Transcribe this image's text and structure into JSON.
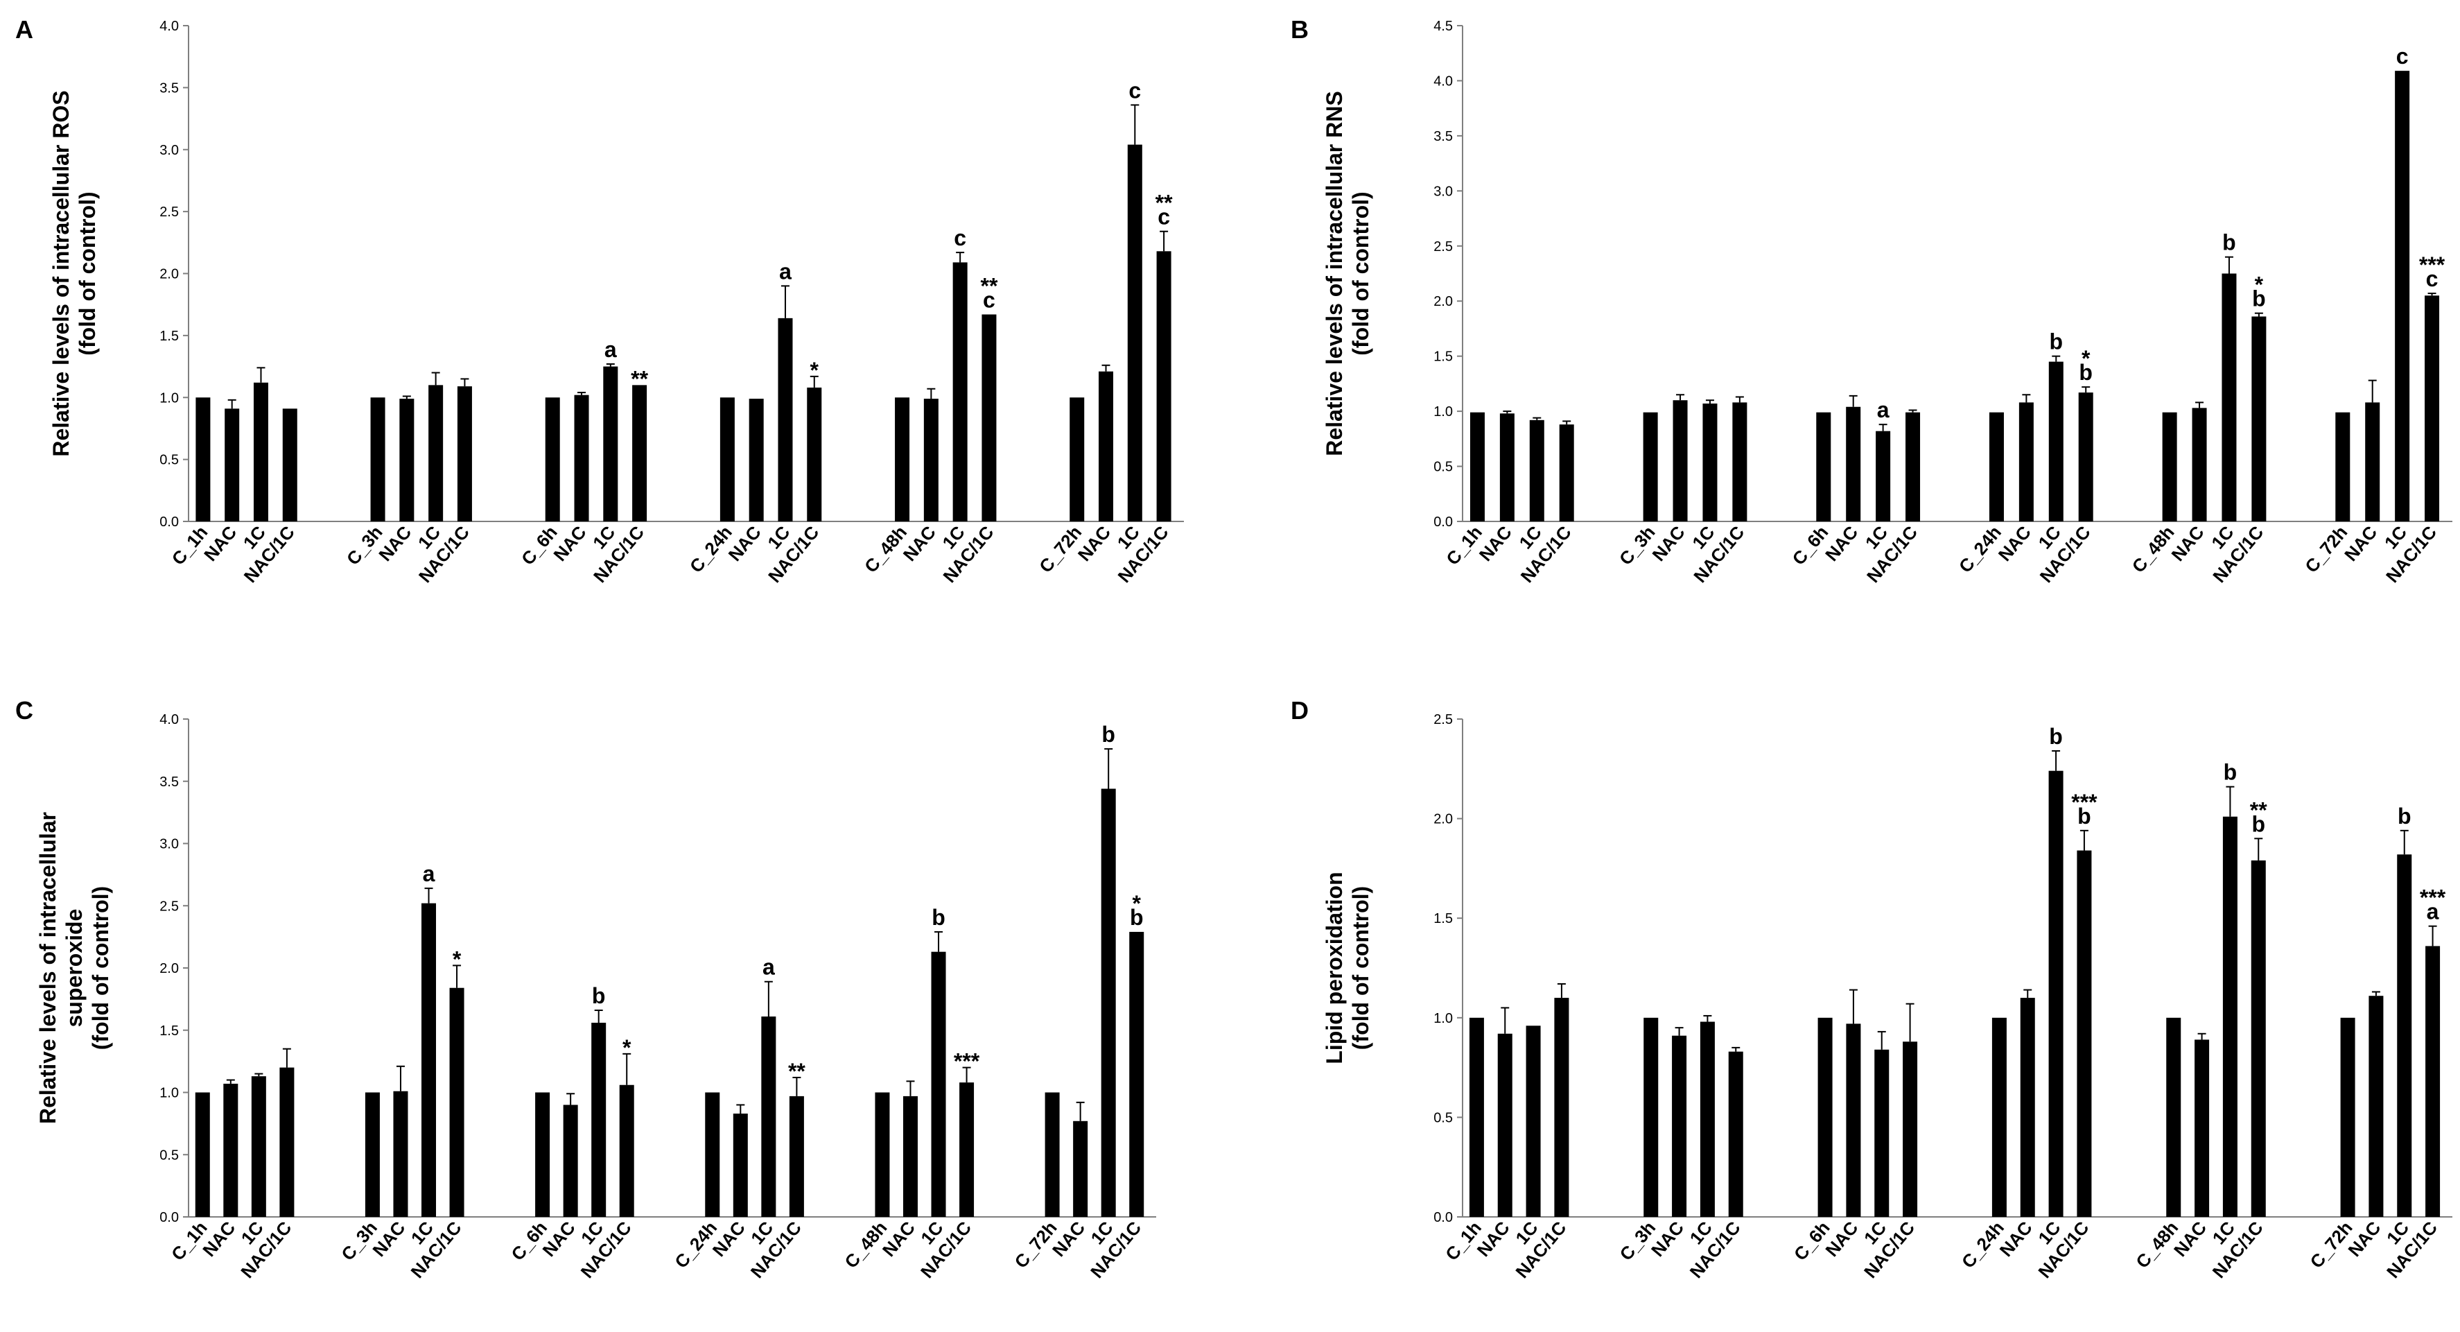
{
  "colors": {
    "bar": "#000000",
    "axis": "#7f7f7f",
    "background": "#ffffff"
  },
  "chart_data": [
    {
      "panel": "A",
      "type": "bar",
      "ylabel": [
        "Relative levels of intracellular ROS",
        "(fold of control)"
      ],
      "ylim": [
        0,
        4.0
      ],
      "yticks": [
        "0.0",
        "0.5",
        "1.0",
        "1.5",
        "2.0",
        "2.5",
        "3.0",
        "3.5",
        "4.0"
      ],
      "categories": [
        "C_1h",
        "NAC",
        "1C",
        "NAC/1C",
        "C_3h",
        "NAC",
        "1C",
        "NAC/1C",
        "C_6h",
        "NAC",
        "1C",
        "NAC/1C",
        "C_24h",
        "NAC",
        "1C",
        "NAC/1C",
        "C_48h",
        "NAC",
        "1C",
        "NAC/1C",
        "C_72h",
        "NAC",
        "1C",
        "NAC/1C"
      ],
      "values": [
        1.0,
        0.91,
        1.12,
        0.91,
        1.0,
        0.99,
        1.1,
        1.09,
        1.0,
        1.02,
        1.25,
        1.1,
        1.0,
        0.99,
        1.64,
        1.08,
        1.0,
        0.99,
        2.09,
        1.67,
        1.0,
        1.21,
        3.04,
        2.18
      ],
      "errors": [
        0.0,
        0.07,
        0.12,
        0.0,
        0.0,
        0.02,
        0.1,
        0.06,
        0.0,
        0.02,
        0.02,
        0.0,
        0.0,
        0.0,
        0.26,
        0.09,
        0.0,
        0.08,
        0.08,
        0.0,
        0.0,
        0.05,
        0.32,
        0.16
      ],
      "annotations": [
        "",
        "",
        "",
        "",
        "",
        "",
        "",
        "",
        "",
        "",
        "a",
        "**",
        "",
        "",
        "a",
        "*",
        "",
        "",
        "c",
        "**\nc",
        "",
        "",
        "c",
        "**\nc"
      ]
    },
    {
      "panel": "B",
      "type": "bar",
      "ylabel": [
        "Relative levels of intracellular RNS",
        "(fold of control)"
      ],
      "ylim": [
        0,
        4.5
      ],
      "yticks": [
        "0.0",
        "0.5",
        "1.0",
        "1.5",
        "2.0",
        "2.5",
        "3.0",
        "3.5",
        "4.0",
        "4.5"
      ],
      "categories": [
        "C_1h",
        "NAC",
        "1C",
        "NAC/1C",
        "C_3h",
        "NAC",
        "1C",
        "NAC/1C",
        "C_6h",
        "NAC",
        "1C",
        "NAC/1C",
        "C_24h",
        "NAC",
        "1C",
        "NAC/1C",
        "C_48h",
        "NAC",
        "1C",
        "NAC/1C",
        "C_72h",
        "NAC",
        "1C",
        "NAC/1C"
      ],
      "values": [
        0.99,
        0.98,
        0.92,
        0.88,
        0.99,
        1.1,
        1.07,
        1.08,
        0.99,
        1.04,
        0.82,
        0.99,
        0.99,
        1.08,
        1.45,
        1.17,
        0.99,
        1.03,
        2.25,
        1.86,
        0.99,
        1.08,
        4.09,
        2.05
      ],
      "errors": [
        0.0,
        0.02,
        0.02,
        0.03,
        0.0,
        0.05,
        0.03,
        0.05,
        0.0,
        0.1,
        0.06,
        0.02,
        0.0,
        0.07,
        0.05,
        0.05,
        0.0,
        0.05,
        0.15,
        0.03,
        0.0,
        0.2,
        0.0,
        0.02
      ],
      "annotations": [
        "",
        "",
        "",
        "",
        "",
        "",
        "",
        "",
        "",
        "",
        "a",
        "",
        "",
        "",
        "b",
        "*\nb",
        "",
        "",
        "b",
        "*\nb",
        "",
        "",
        "c",
        "***\nc"
      ]
    },
    {
      "panel": "C",
      "type": "bar",
      "ylabel": [
        "Relative levels of intracellular",
        "superoxide",
        "(fold of control)"
      ],
      "ylim": [
        0,
        4.0
      ],
      "yticks": [
        "0.0",
        "0.5",
        "1.0",
        "1.5",
        "2.0",
        "2.5",
        "3.0",
        "3.5",
        "4.0"
      ],
      "categories": [
        "C_1h",
        "NAC",
        "1C",
        "NAC/1C",
        "C_3h",
        "NAC",
        "1C",
        "NAC/1C",
        "C_6h",
        "NAC",
        "1C",
        "NAC/1C",
        "C_24h",
        "NAC",
        "1C",
        "NAC/1C",
        "C_48h",
        "NAC",
        "1C",
        "NAC/1C",
        "C_72h",
        "NAC",
        "1C",
        "NAC/1C"
      ],
      "values": [
        1.0,
        1.07,
        1.13,
        1.2,
        1.0,
        1.01,
        2.52,
        1.84,
        1.0,
        0.9,
        1.56,
        1.06,
        1.0,
        0.83,
        1.61,
        0.97,
        1.0,
        0.97,
        2.13,
        1.08,
        1.0,
        0.77,
        3.44,
        2.29
      ],
      "errors": [
        0.0,
        0.03,
        0.02,
        0.15,
        0.0,
        0.2,
        0.12,
        0.18,
        0.0,
        0.09,
        0.1,
        0.25,
        0.0,
        0.07,
        0.28,
        0.15,
        0.0,
        0.12,
        0.16,
        0.12,
        0.0,
        0.15,
        0.32,
        0.0
      ],
      "annotations": [
        "",
        "",
        "",
        "",
        "",
        "",
        "a",
        "*",
        "",
        "",
        "b",
        "*",
        "",
        "",
        "a",
        "**",
        "",
        "",
        "b",
        "***",
        "",
        "",
        "b",
        "*\nb"
      ]
    },
    {
      "panel": "D",
      "type": "bar",
      "ylabel": [
        "Lipid peroxidation",
        "(fold of control)"
      ],
      "ylim": [
        0,
        2.5
      ],
      "yticks": [
        "0.0",
        "0.5",
        "1.0",
        "1.5",
        "2.0",
        "2.5"
      ],
      "categories": [
        "C_1h",
        "NAC",
        "1C",
        "NAC/1C",
        "C_3h",
        "NAC",
        "1C",
        "NAC/1C",
        "C_6h",
        "NAC",
        "1C",
        "NAC/1C",
        "C_24h",
        "NAC",
        "1C",
        "NAC/1C",
        "C_48h",
        "NAC",
        "1C",
        "NAC/1C",
        "C_72h",
        "NAC",
        "1C",
        "NAC/1C"
      ],
      "values": [
        1.0,
        0.92,
        0.96,
        1.1,
        1.0,
        0.91,
        0.98,
        0.83,
        1.0,
        0.97,
        0.84,
        0.88,
        1.0,
        1.1,
        2.24,
        1.84,
        1.0,
        0.89,
        2.01,
        1.79,
        1.0,
        1.11,
        1.82,
        1.36
      ],
      "errors": [
        0.0,
        0.13,
        0.0,
        0.07,
        0.0,
        0.04,
        0.03,
        0.02,
        0.0,
        0.17,
        0.09,
        0.19,
        0.0,
        0.04,
        0.1,
        0.1,
        0.0,
        0.03,
        0.15,
        0.11,
        0.0,
        0.02,
        0.12,
        0.1
      ],
      "annotations": [
        "",
        "",
        "",
        "",
        "",
        "",
        "",
        "",
        "",
        "",
        "",
        "",
        "",
        "",
        "b",
        "***\nb",
        "",
        "",
        "b",
        "**\nb",
        "",
        "",
        "b",
        "***\na"
      ]
    }
  ]
}
